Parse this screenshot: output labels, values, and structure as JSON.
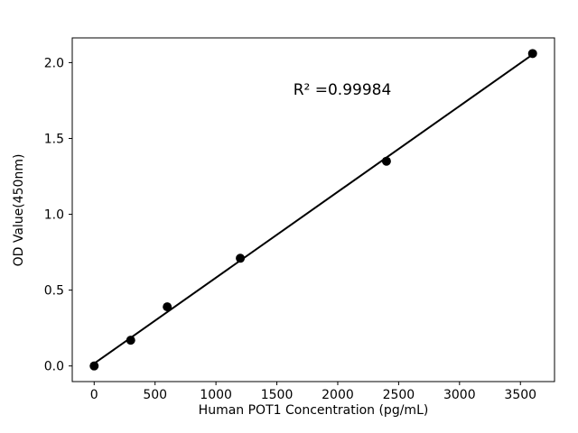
{
  "chart_data": {
    "type": "scatter",
    "title": "",
    "xlabel": "Human POT1 Concentration (pg/mL)",
    "ylabel": "OD Value(450nm)",
    "x": [
      0,
      300,
      600,
      1200,
      2400,
      3600
    ],
    "y": [
      0.0,
      0.17,
      0.39,
      0.71,
      1.35,
      2.06
    ],
    "xlim": [
      -180,
      3780
    ],
    "ylim": [
      -0.103,
      2.163
    ],
    "xticks": [
      0,
      500,
      1000,
      1500,
      2000,
      2500,
      3000,
      3500
    ],
    "yticks": [
      0.0,
      0.5,
      1.0,
      1.5,
      2.0
    ],
    "annotation": "R² =0.99984",
    "fit_line": true,
    "grid": false,
    "legend_position": "none",
    "marker_color": "#000000",
    "line_color": "#000000",
    "background_color": "#ffffff"
  }
}
